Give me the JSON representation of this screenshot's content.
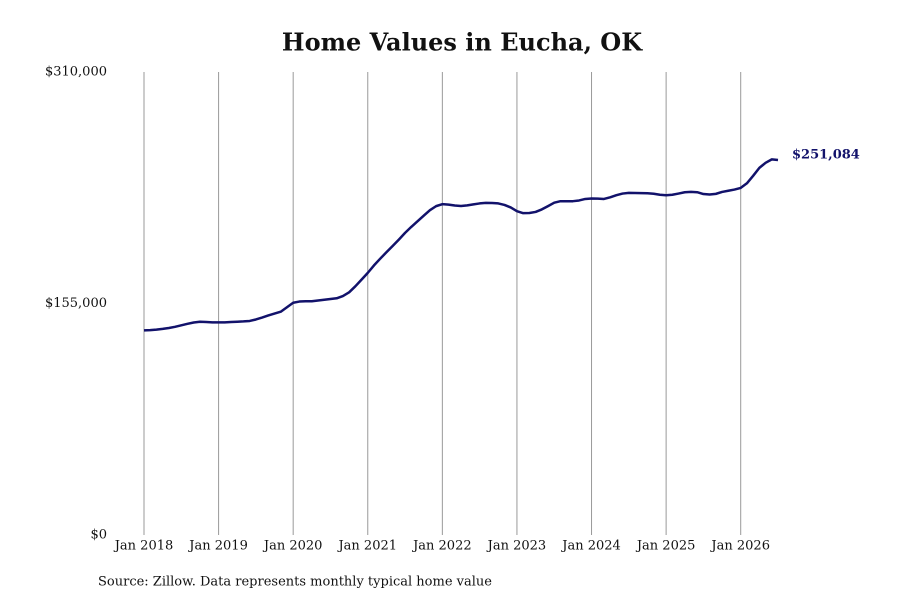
{
  "chart_data": {
    "type": "line",
    "title": "Home Values in Eucha, OK",
    "source": "Source: Zillow. Data represents monthly typical home value",
    "color": "#12126b",
    "grid": true,
    "x": [
      "2018-01",
      "2018-02",
      "2018-03",
      "2018-04",
      "2018-05",
      "2018-06",
      "2018-07",
      "2018-08",
      "2018-09",
      "2018-10",
      "2018-11",
      "2018-12",
      "2019-01",
      "2019-02",
      "2019-03",
      "2019-04",
      "2019-05",
      "2019-06",
      "2019-07",
      "2019-08",
      "2019-09",
      "2019-10",
      "2019-11",
      "2019-12",
      "2020-01",
      "2020-02",
      "2020-03",
      "2020-04",
      "2020-05",
      "2020-06",
      "2020-07",
      "2020-08",
      "2020-09",
      "2020-10",
      "2020-11",
      "2020-12",
      "2021-01",
      "2021-02",
      "2021-03",
      "2021-04",
      "2021-05",
      "2021-06",
      "2021-07",
      "2021-08",
      "2021-09",
      "2021-10",
      "2021-11",
      "2021-12",
      "2022-01",
      "2022-02",
      "2022-03",
      "2022-04",
      "2022-05",
      "2022-06",
      "2022-07",
      "2022-08",
      "2022-09",
      "2022-10",
      "2022-11",
      "2022-12",
      "2023-01",
      "2023-02",
      "2023-03",
      "2023-04",
      "2023-05",
      "2023-06",
      "2023-07",
      "2023-08",
      "2023-09",
      "2023-10",
      "2023-11",
      "2023-12",
      "2024-01",
      "2024-02",
      "2024-03",
      "2024-04",
      "2024-05",
      "2024-06",
      "2024-07",
      "2024-08",
      "2024-09",
      "2024-10",
      "2024-11",
      "2024-12",
      "2025-01",
      "2025-02",
      "2025-03",
      "2025-04",
      "2025-05",
      "2025-06",
      "2025-07",
      "2025-08",
      "2025-09",
      "2025-10",
      "2025-11",
      "2025-12",
      "2026-01",
      "2026-02",
      "2026-03",
      "2026-04",
      "2026-05",
      "2026-06",
      "2026-07"
    ],
    "values": [
      137000,
      137200,
      137500,
      138000,
      138600,
      139400,
      140400,
      141400,
      142300,
      142800,
      142600,
      142400,
      142400,
      142400,
      142600,
      142800,
      143000,
      143300,
      144300,
      145600,
      147000,
      148300,
      149500,
      152500,
      155500,
      156300,
      156500,
      156500,
      157000,
      157500,
      158000,
      158500,
      160000,
      162500,
      166500,
      171000,
      175500,
      180500,
      185000,
      189300,
      193500,
      197800,
      202300,
      206300,
      210000,
      213800,
      217500,
      220200,
      221500,
      221200,
      220600,
      220300,
      220700,
      221400,
      222000,
      222400,
      222300,
      222000,
      221000,
      219300,
      216800,
      215500,
      215600,
      216300,
      218000,
      220200,
      222500,
      223500,
      223500,
      223500,
      224000,
      225000,
      225300,
      225200,
      225000,
      226100,
      227500,
      228600,
      229100,
      229000,
      228900,
      228800,
      228500,
      227800,
      227500,
      227800,
      228600,
      229500,
      229700,
      229500,
      228300,
      228000,
      228400,
      229700,
      230500,
      231300,
      232400,
      235500,
      240500,
      245800,
      249200,
      251500,
      251084
    ],
    "value_labels": [
      null,
      null,
      null,
      null,
      null,
      null,
      null,
      null,
      null,
      null,
      null,
      null,
      null,
      null,
      null,
      null,
      null,
      null,
      null,
      null,
      null,
      null,
      null,
      null,
      null,
      null,
      null,
      null,
      null,
      null,
      null,
      null,
      null,
      null,
      null,
      null,
      null,
      null,
      null,
      null,
      null,
      null,
      null,
      null,
      null,
      null,
      null,
      null,
      null,
      null,
      null,
      null,
      null,
      null,
      null,
      null,
      null,
      null,
      null,
      null,
      null,
      null,
      null,
      null,
      null,
      null,
      null,
      null,
      null,
      null,
      null,
      null,
      null,
      null,
      null,
      null,
      null,
      null,
      null,
      null,
      null,
      null,
      null,
      null,
      null,
      null,
      null,
      null,
      null,
      null,
      null,
      null,
      null,
      null,
      null,
      null,
      null,
      null,
      null,
      null,
      null,
      null,
      "$251,084"
    ],
    "xlim": [
      "2018-01",
      "2026-07"
    ],
    "xticks": [
      {
        "value": "2018-01",
        "label": "Jan 2018"
      },
      {
        "value": "2019-01",
        "label": "Jan 2019"
      },
      {
        "value": "2020-01",
        "label": "Jan 2020"
      },
      {
        "value": "2021-01",
        "label": "Jan 2021"
      },
      {
        "value": "2022-01",
        "label": "Jan 2022"
      },
      {
        "value": "2023-01",
        "label": "Jan 2023"
      },
      {
        "value": "2024-01",
        "label": "Jan 2024"
      },
      {
        "value": "2025-01",
        "label": "Jan 2025"
      },
      {
        "value": "2026-01",
        "label": "Jan 2026"
      }
    ],
    "ylim": [
      0,
      310000
    ],
    "yticks": [
      {
        "value": 0,
        "label": "$0"
      },
      {
        "value": 155000,
        "label": "$155,000"
      },
      {
        "value": 310000,
        "label": "$310,000"
      }
    ]
  }
}
